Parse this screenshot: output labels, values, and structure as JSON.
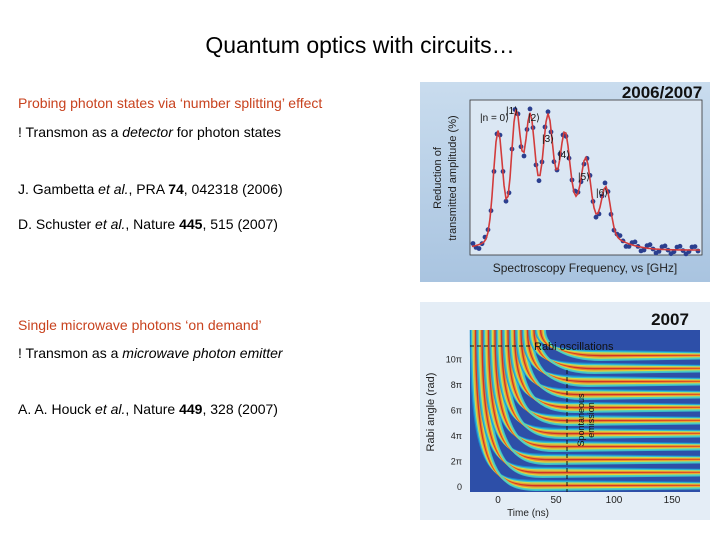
{
  "title": "Quantum optics with circuits…",
  "sections": [
    {
      "heading": "Probing photon states via ‘number splitting’ effect",
      "line": [
        "! Transmon as a ",
        "detector",
        " for photon states"
      ],
      "references": [
        [
          "J. Gambetta ",
          "et al.",
          ", PRA ",
          "74",
          ", 042318 (2006)"
        ],
        [
          "D. Schuster ",
          "et al.",
          ", Nature ",
          "445",
          ", 515 (2007)"
        ]
      ]
    },
    {
      "heading": "Single microwave photons ‘on demand’",
      "line": [
        "! Transmon as a ",
        "microwave photon emitter",
        ""
      ],
      "references": [
        [
          "A. A. Houck ",
          "et al.",
          ", Nature ",
          "449",
          ", 328 (2007)"
        ]
      ]
    }
  ],
  "figures": [
    {
      "year": "2006/2007",
      "y_label": [
        "Reduction of",
        "transmitted amplitude (%)"
      ],
      "x_label": "Spectroscopy Frequency, νs   [GHz]",
      "peak_labels": [
        "|n = 0⟩",
        "|1⟩",
        "|2⟩",
        "|3⟩",
        "|4⟩",
        "|5⟩",
        "|6⟩"
      ]
    },
    {
      "year": "2007",
      "annotation": "Rabi oscillations",
      "side_label": [
        "Spontaneous",
        "emission"
      ],
      "y_label": "Rabi angle (rad)",
      "yticks": [
        "10π",
        "8π",
        "6π",
        "4π",
        "2π",
        "0"
      ],
      "xticks": [
        "0",
        "50",
        "100",
        "150"
      ],
      "x_label": "Time (ns)"
    }
  ]
}
